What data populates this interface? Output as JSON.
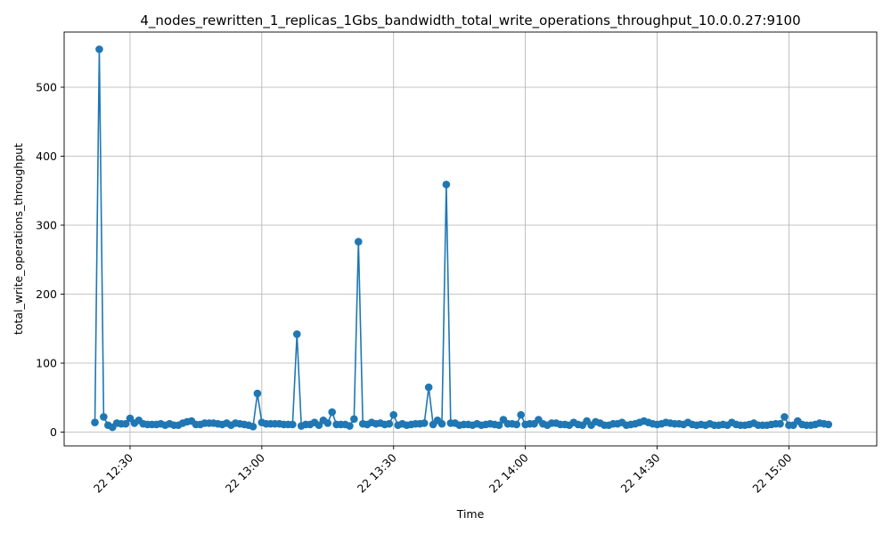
{
  "chart_data": {
    "type": "line",
    "title": "4_nodes_rewritten_1_replicas_1Gbs_bandwidth_total_write_operations_throughput_10.0.0.27:9100",
    "xlabel": "Time",
    "ylabel": "total_write_operations_throughput",
    "grid": true,
    "x_axis": {
      "type": "time",
      "range": [
        "22 12:15",
        "22 15:20"
      ],
      "ticks": [
        "22 12:30",
        "22 13:00",
        "22 13:30",
        "22 14:00",
        "22 14:30",
        "22 15:00"
      ]
    },
    "y_axis": {
      "range": [
        -20,
        580
      ],
      "ticks": [
        0,
        100,
        200,
        300,
        400,
        500
      ]
    },
    "colors": {
      "series": "#1f77b4",
      "grid": "#b0b0b0"
    },
    "series": [
      {
        "x_start": "22 12:22",
        "interval_minutes": 1,
        "y": [
          14,
          555,
          22,
          10,
          7,
          13,
          12,
          12,
          20,
          13,
          17,
          12,
          11,
          11,
          11,
          12,
          10,
          12,
          10,
          10,
          13,
          15,
          16,
          11,
          11,
          13,
          13,
          13,
          12,
          11,
          13,
          10,
          13,
          12,
          11,
          10,
          8,
          56,
          14,
          12,
          12,
          12,
          12,
          11,
          11,
          11,
          142,
          9,
          11,
          11,
          14,
          10,
          17,
          13,
          29,
          11,
          11,
          11,
          9,
          19,
          276,
          12,
          11,
          14,
          12,
          13,
          11,
          12,
          25,
          10,
          12,
          10,
          11,
          12,
          12,
          13,
          65,
          11,
          17,
          12,
          359,
          13,
          13,
          10,
          11,
          11,
          10,
          12,
          10,
          11,
          12,
          11,
          10,
          18,
          12,
          12,
          11,
          25,
          11,
          12,
          12,
          18,
          12,
          10,
          13,
          13,
          11,
          11,
          10,
          14,
          11,
          10,
          16,
          10,
          15,
          13,
          10,
          10,
          12,
          12,
          14,
          10,
          11,
          12,
          14,
          16,
          14,
          12,
          11,
          12,
          14,
          13,
          12,
          12,
          11,
          14,
          11,
          10,
          11,
          10,
          12,
          10,
          10,
          11,
          10,
          14,
          11,
          10,
          10,
          11,
          13,
          10,
          10,
          10,
          11,
          12,
          12,
          22,
          10,
          10,
          16,
          11,
          10,
          10,
          11,
          13,
          12,
          11
        ]
      }
    ]
  }
}
